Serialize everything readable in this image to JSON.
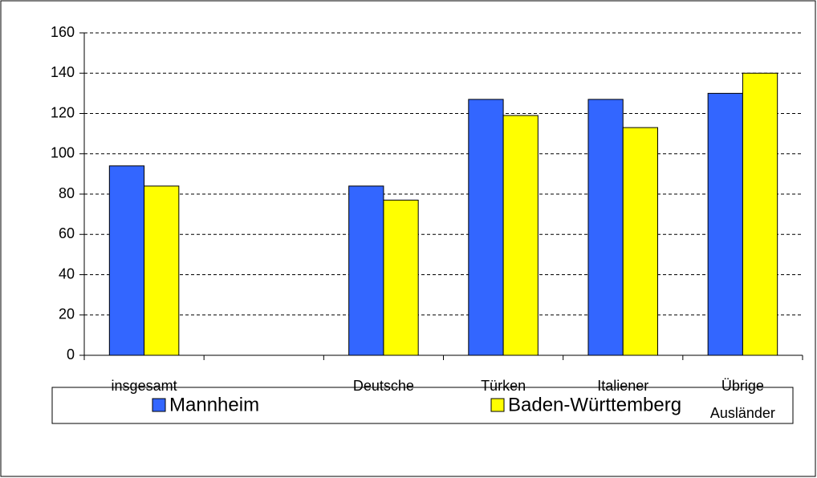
{
  "chart_data": {
    "type": "bar",
    "categories": [
      "insgesamt",
      null,
      "Deutsche",
      "Türken",
      "Italiener",
      "Übrige Ausländer"
    ],
    "series": [
      {
        "name": "Mannheim",
        "color": "#3366ff",
        "values": [
          94,
          null,
          84,
          127,
          127,
          130
        ]
      },
      {
        "name": "Baden-Württemberg",
        "color": "#ffff00",
        "values": [
          84,
          null,
          77,
          119,
          113,
          140
        ]
      }
    ],
    "ylim": [
      0,
      160
    ],
    "yticks": [
      0,
      20,
      40,
      60,
      80,
      100,
      120,
      140,
      160
    ],
    "grid": true,
    "legend": "bottom"
  }
}
